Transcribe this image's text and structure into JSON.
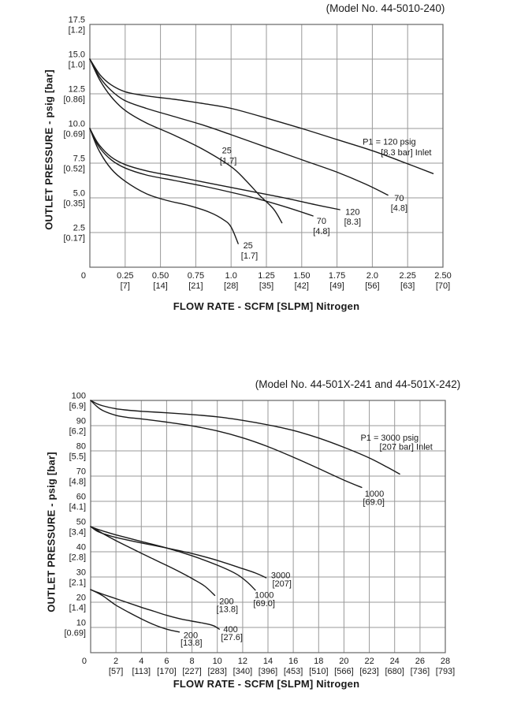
{
  "page": {
    "background": "#ffffff",
    "text_color": "#1a1a1a",
    "grid_color": "#999999",
    "border_color": "#666666",
    "curve_color": "#1a1a1a"
  },
  "chart_data": [
    {
      "type": "line",
      "title": "(Model No. 44-5010-240)",
      "xlabel": "FLOW RATE - SCFM [SLPM] Nitrogen",
      "ylabel": "OUTLET PRESSURE - psig [bar]",
      "xlim": [
        0,
        2.5
      ],
      "ylim": [
        0,
        17.5
      ],
      "grid": "on",
      "corner_zero": "0",
      "x_ticks": [
        {
          "v": 0.25,
          "label": "0.25",
          "sub": "[7]"
        },
        {
          "v": 0.5,
          "label": "0.50",
          "sub": "[14]"
        },
        {
          "v": 0.75,
          "label": "0.75",
          "sub": "[21]"
        },
        {
          "v": 1.0,
          "label": "1.0",
          "sub": "[28]"
        },
        {
          "v": 1.25,
          "label": "1.25",
          "sub": "[35]"
        },
        {
          "v": 1.5,
          "label": "1.50",
          "sub": "[42]"
        },
        {
          "v": 1.75,
          "label": "1.75",
          "sub": "[49]"
        },
        {
          "v": 2.0,
          "label": "2.0",
          "sub": "[56]"
        },
        {
          "v": 2.25,
          "label": "2.25",
          "sub": "[63]"
        },
        {
          "v": 2.5,
          "label": "2.50",
          "sub": "[70]"
        }
      ],
      "y_ticks": [
        {
          "v": 17.5,
          "label": "17.5",
          "sub": "[1.2]"
        },
        {
          "v": 15,
          "label": "15.0",
          "sub": "[1.0]"
        },
        {
          "v": 12.5,
          "label": "12.5",
          "sub": "[0.86]"
        },
        {
          "v": 10,
          "label": "10.0",
          "sub": "[0.69]"
        },
        {
          "v": 7.5,
          "label": "7.5",
          "sub": "[0.52]"
        },
        {
          "v": 5,
          "label": "5.0",
          "sub": "[0.35]"
        },
        {
          "v": 2.5,
          "label": "2.5",
          "sub": "[0.17]"
        }
      ],
      "series": [
        {
          "name": "set 15 psig - inlet 120 psig [8.3 bar]",
          "points": [
            [
              0,
              15
            ],
            [
              0.07,
              13.9
            ],
            [
              0.15,
              13.15
            ],
            [
              0.25,
              12.65
            ],
            [
              0.4,
              12.35
            ],
            [
              0.6,
              12.1
            ],
            [
              0.8,
              11.8
            ],
            [
              1.0,
              11.45
            ],
            [
              1.25,
              10.75
            ],
            [
              1.5,
              10.0
            ],
            [
              1.75,
              9.2
            ],
            [
              2.0,
              8.4
            ],
            [
              2.2,
              7.65
            ],
            [
              2.43,
              6.75
            ]
          ]
        },
        {
          "name": "set 15 psig - inlet 70 psig [4.8 bar]",
          "points": [
            [
              0,
              15
            ],
            [
              0.07,
              13.7
            ],
            [
              0.15,
              12.75
            ],
            [
              0.25,
              12.0
            ],
            [
              0.4,
              11.45
            ],
            [
              0.6,
              10.85
            ],
            [
              0.8,
              10.25
            ],
            [
              1.0,
              9.55
            ],
            [
              1.25,
              8.65
            ],
            [
              1.5,
              7.75
            ],
            [
              1.75,
              6.85
            ],
            [
              1.95,
              6.0
            ],
            [
              2.11,
              5.2
            ]
          ]
        },
        {
          "name": "set 15 psig - inlet 25 psig [1.7 bar]",
          "points": [
            [
              0,
              15
            ],
            [
              0.07,
              13.5
            ],
            [
              0.15,
              12.3
            ],
            [
              0.25,
              11.3
            ],
            [
              0.4,
              10.4
            ],
            [
              0.6,
              9.5
            ],
            [
              0.8,
              8.5
            ],
            [
              1.0,
              7.25
            ],
            [
              1.1,
              6.3
            ],
            [
              1.2,
              5.2
            ],
            [
              1.3,
              4.2
            ],
            [
              1.36,
              3.2
            ]
          ]
        },
        {
          "name": "set 10 psig - inlet 120 psig [8.3 bar]",
          "points": [
            [
              0,
              10
            ],
            [
              0.06,
              8.9
            ],
            [
              0.15,
              7.95
            ],
            [
              0.25,
              7.4
            ],
            [
              0.4,
              6.95
            ],
            [
              0.6,
              6.55
            ],
            [
              0.8,
              6.15
            ],
            [
              1.0,
              5.75
            ],
            [
              1.2,
              5.35
            ],
            [
              1.4,
              4.95
            ],
            [
              1.6,
              4.5
            ],
            [
              1.77,
              4.15
            ]
          ]
        },
        {
          "name": "set 10 psig - inlet 70 psig [4.8 bar]",
          "points": [
            [
              0,
              10
            ],
            [
              0.06,
              8.75
            ],
            [
              0.15,
              7.75
            ],
            [
              0.25,
              7.15
            ],
            [
              0.4,
              6.65
            ],
            [
              0.6,
              6.25
            ],
            [
              0.8,
              5.85
            ],
            [
              1.0,
              5.4
            ],
            [
              1.2,
              4.9
            ],
            [
              1.4,
              4.3
            ],
            [
              1.58,
              3.7
            ]
          ]
        },
        {
          "name": "set 10 psig - inlet 25 psig [1.7 bar]",
          "points": [
            [
              0,
              10
            ],
            [
              0.06,
              8.5
            ],
            [
              0.15,
              7.1
            ],
            [
              0.25,
              6.2
            ],
            [
              0.4,
              5.3
            ],
            [
              0.55,
              4.8
            ],
            [
              0.7,
              4.45
            ],
            [
              0.85,
              3.95
            ],
            [
              0.95,
              3.4
            ],
            [
              1.0,
              2.9
            ],
            [
              1.05,
              1.7
            ]
          ]
        }
      ],
      "annotations": [
        {
          "text": "P1 = 120 psig",
          "x": 2.12,
          "y": 9.05
        },
        {
          "text": "[8.3 bar] Inlet",
          "x": 2.24,
          "y": 8.3
        },
        {
          "text": "25",
          "x": 0.97,
          "y": 8.45
        },
        {
          "text": "[1.7]",
          "x": 0.98,
          "y": 7.7
        },
        {
          "text": "70",
          "x": 2.19,
          "y": 5.0
        },
        {
          "text": "[4.8]",
          "x": 2.19,
          "y": 4.3
        },
        {
          "text": "120",
          "x": 1.86,
          "y": 4.0
        },
        {
          "text": "[8.3]",
          "x": 1.86,
          "y": 3.3
        },
        {
          "text": "70",
          "x": 1.64,
          "y": 3.35
        },
        {
          "text": "[4.8]",
          "x": 1.64,
          "y": 2.6
        },
        {
          "text": "25",
          "x": 1.12,
          "y": 1.6
        },
        {
          "text": "[1.7]",
          "x": 1.13,
          "y": 0.85
        }
      ]
    },
    {
      "type": "line",
      "title": "(Model No. 44-501X-241 and 44-501X-242)",
      "xlabel": "FLOW RATE - SCFM [SLPM] Nitrogen",
      "ylabel": "OUTLET PRESSURE - psig [bar]",
      "xlim": [
        0,
        28
      ],
      "ylim": [
        0,
        100
      ],
      "grid": "on",
      "corner_zero": "0",
      "x_ticks": [
        {
          "v": 2,
          "label": "2",
          "sub": "[57]"
        },
        {
          "v": 4,
          "label": "4",
          "sub": "[113]"
        },
        {
          "v": 6,
          "label": "6",
          "sub": "[170]"
        },
        {
          "v": 8,
          "label": "8",
          "sub": "[227]"
        },
        {
          "v": 10,
          "label": "10",
          "sub": "[283]"
        },
        {
          "v": 12,
          "label": "12",
          "sub": "[340]"
        },
        {
          "v": 14,
          "label": "14",
          "sub": "[396]"
        },
        {
          "v": 16,
          "label": "16",
          "sub": "[453]"
        },
        {
          "v": 18,
          "label": "18",
          "sub": "[510]"
        },
        {
          "v": 20,
          "label": "20",
          "sub": "[566]"
        },
        {
          "v": 22,
          "label": "22",
          "sub": "[623]"
        },
        {
          "v": 24,
          "label": "24",
          "sub": "[680]"
        },
        {
          "v": 26,
          "label": "26",
          "sub": "[736]"
        },
        {
          "v": 28,
          "label": "28",
          "sub": "[793]"
        }
      ],
      "y_ticks": [
        {
          "v": 100,
          "label": "100",
          "sub": "[6.9]"
        },
        {
          "v": 90,
          "label": "90",
          "sub": "[6.2]"
        },
        {
          "v": 80,
          "label": "80",
          "sub": "[5.5]"
        },
        {
          "v": 70,
          "label": "70",
          "sub": "[4.8]"
        },
        {
          "v": 60,
          "label": "60",
          "sub": "[4.1]"
        },
        {
          "v": 50,
          "label": "50",
          "sub": "[3.4]"
        },
        {
          "v": 40,
          "label": "40",
          "sub": "[2.8]"
        },
        {
          "v": 30,
          "label": "30",
          "sub": "[2.1]"
        },
        {
          "v": 20,
          "label": "20",
          "sub": "[1.4]"
        },
        {
          "v": 10,
          "label": "10",
          "sub": "[0.69]"
        }
      ],
      "series": [
        {
          "name": "set 100 psig - inlet 3000 psig [207 bar]",
          "points": [
            [
              0,
              100
            ],
            [
              0.5,
              98.7
            ],
            [
              1,
              97.8
            ],
            [
              2,
              96.7
            ],
            [
              3,
              96.1
            ],
            [
              4,
              95.7
            ],
            [
              6,
              95.1
            ],
            [
              8,
              94.4
            ],
            [
              10,
              93.5
            ],
            [
              12,
              92.1
            ],
            [
              14,
              90.3
            ],
            [
              16,
              88.1
            ],
            [
              18,
              85.1
            ],
            [
              20,
              81.4
            ],
            [
              22,
              77.2
            ],
            [
              23.5,
              73.3
            ],
            [
              24.4,
              70.8
            ]
          ]
        },
        {
          "name": "set 100 psig - inlet 1000 psig [69.0 bar]",
          "points": [
            [
              0,
              100
            ],
            [
              0.5,
              97.6
            ],
            [
              1,
              95.9
            ],
            [
              2,
              94.1
            ],
            [
              3,
              93.2
            ],
            [
              4,
              92.7
            ],
            [
              6,
              91.4
            ],
            [
              8,
              89.9
            ],
            [
              10,
              87.9
            ],
            [
              12,
              85.2
            ],
            [
              14,
              81.7
            ],
            [
              16,
              77.5
            ],
            [
              18,
              73.0
            ],
            [
              20,
              68.4
            ],
            [
              21.4,
              65.5
            ]
          ]
        },
        {
          "name": "set 50 psig - inlet 3000 psig [207 bar]",
          "points": [
            [
              0,
              50
            ],
            [
              0.5,
              48.2
            ],
            [
              1,
              47.2
            ],
            [
              2,
              45.7
            ],
            [
              4,
              43.5
            ],
            [
              6,
              41.5
            ],
            [
              8,
              39.3
            ],
            [
              10,
              36.6
            ],
            [
              12,
              33.3
            ],
            [
              13,
              31.6
            ],
            [
              13.85,
              29.7
            ]
          ]
        },
        {
          "name": "set 50 psig - inlet 1000 psig [69.0 bar]",
          "points": [
            [
              0,
              50
            ],
            [
              0.5,
              49.0
            ],
            [
              1,
              48.2
            ],
            [
              2,
              46.7
            ],
            [
              4,
              44.1
            ],
            [
              6,
              41.5
            ],
            [
              8,
              38.4
            ],
            [
              10,
              34.7
            ],
            [
              11.5,
              31.2
            ],
            [
              12.4,
              27.8
            ],
            [
              13.0,
              24.8
            ]
          ]
        },
        {
          "name": "set 50 psig - inlet 200 psig [13.8 bar]",
          "points": [
            [
              0,
              50
            ],
            [
              0.5,
              48.6
            ],
            [
              1,
              47.1
            ],
            [
              2,
              44.4
            ],
            [
              3,
              41.9
            ],
            [
              4,
              39.4
            ],
            [
              5,
              37.0
            ],
            [
              6,
              34.6
            ],
            [
              7,
              32.1
            ],
            [
              8,
              29.4
            ],
            [
              9,
              26.4
            ],
            [
              9.8,
              22.7
            ]
          ]
        },
        {
          "name": "set 25 psig - inlet 400 psig [27.6 bar]",
          "points": [
            [
              0,
              25
            ],
            [
              0.5,
              24.0
            ],
            [
              1,
              23.1
            ],
            [
              2,
              21.4
            ],
            [
              3,
              19.7
            ],
            [
              4,
              18.0
            ],
            [
              5,
              16.4
            ],
            [
              6,
              14.8
            ],
            [
              7,
              13.5
            ],
            [
              8,
              12.5
            ],
            [
              9,
              11.6
            ],
            [
              9.7,
              10.7
            ],
            [
              10.16,
              9.3
            ]
          ]
        },
        {
          "name": "set 25 psig - inlet 200 psig [13.8 bar]",
          "points": [
            [
              0,
              25
            ],
            [
              0.5,
              23.8
            ],
            [
              1,
              22.4
            ],
            [
              1.5,
              20.6
            ],
            [
              2,
              18.8
            ],
            [
              3,
              16.0
            ],
            [
              4,
              13.4
            ],
            [
              5,
              11.1
            ],
            [
              6,
              9.3
            ],
            [
              7.0,
              8.2
            ]
          ]
        }
      ],
      "annotations": [
        {
          "text": "P1 = 3000 psig",
          "x": 23.6,
          "y": 85.3
        },
        {
          "text": "[207 bar] Inlet",
          "x": 24.9,
          "y": 81.7
        },
        {
          "text": "1000",
          "x": 22.4,
          "y": 63.2
        },
        {
          "text": "[69.0]",
          "x": 22.35,
          "y": 59.9
        },
        {
          "text": "3000",
          "x": 15.0,
          "y": 30.8
        },
        {
          "text": "[207]",
          "x": 15.1,
          "y": 27.5
        },
        {
          "text": "1000",
          "x": 13.7,
          "y": 22.9
        },
        {
          "text": "[69.0]",
          "x": 13.7,
          "y": 19.7
        },
        {
          "text": "200",
          "x": 10.73,
          "y": 20.5
        },
        {
          "text": "[13.8]",
          "x": 10.78,
          "y": 17.3
        },
        {
          "text": "400",
          "x": 11.05,
          "y": 9.4
        },
        {
          "text": "[27.6]",
          "x": 11.15,
          "y": 6.2
        },
        {
          "text": "200",
          "x": 7.9,
          "y": 7.0
        },
        {
          "text": "[13.8]",
          "x": 7.95,
          "y": 4.0
        }
      ]
    }
  ]
}
